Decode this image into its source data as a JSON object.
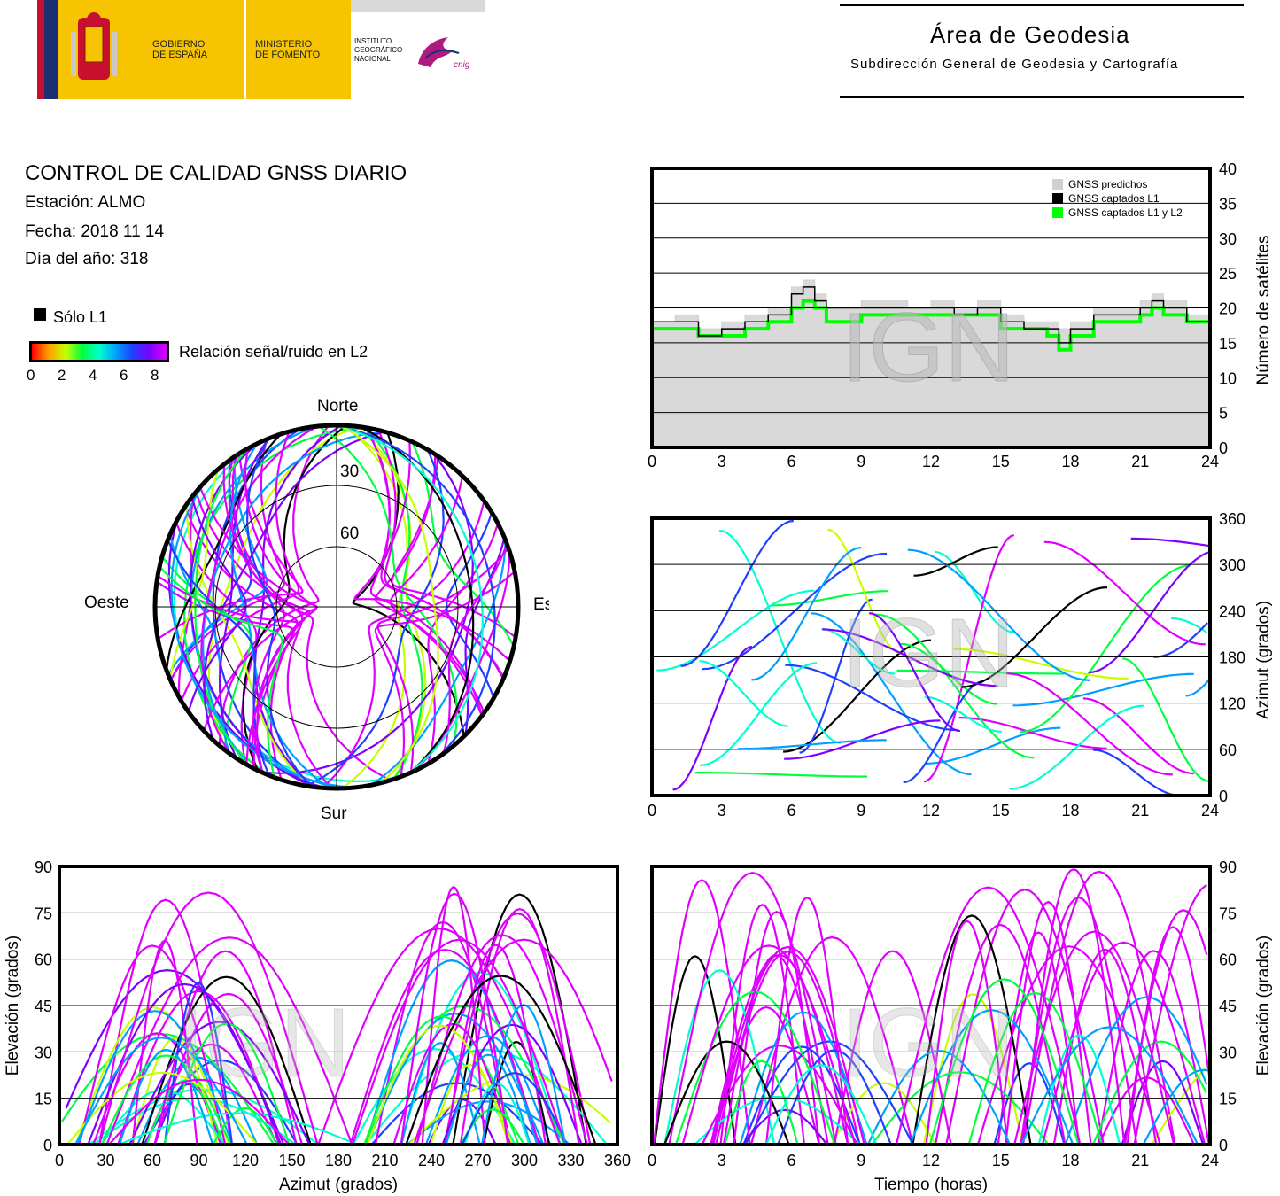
{
  "header": {
    "gov1": "GOBIERNO",
    "gov2": "DE ESPAÑA",
    "min1": "MINISTERIO",
    "min2": "DE FOMENTO",
    "ign1": "INSTITUTO",
    "ign2": "GEOGRÁFICO",
    "ign3": "NACIONAL",
    "cnig": "cnig",
    "area_title": "Área de Geodesia",
    "area_subtitle": "Subdirección General de Geodesia y Cartografía"
  },
  "info": {
    "title": "CONTROL DE CALIDAD GNSS DIARIO",
    "station": "Estación: ALMO",
    "date": "Fecha: 2018 11 14",
    "doy": "Día del año: 318"
  },
  "legend": {
    "l1_only": "Sólo L1",
    "snr_label": "Relación señal/ruido en L2",
    "snr_ticks": [
      "0",
      "2",
      "4",
      "6",
      "8"
    ],
    "snr_colors": [
      "#ff0000",
      "#ffa000",
      "#c8ff00",
      "#00ff40",
      "#00ffd0",
      "#00a0ff",
      "#2040ff",
      "#8000ff",
      "#e000ff"
    ]
  },
  "watermark": "IGN",
  "charts": {
    "skyplot": {
      "north": "Norte",
      "south": "Sur",
      "east": "Este",
      "west": "Oeste",
      "ring30": "30",
      "ring60": "60"
    },
    "numsat": {
      "ylabel": "Número de satélites",
      "yticks": [
        "0",
        "5",
        "10",
        "15",
        "20",
        "25",
        "30",
        "35",
        "40"
      ],
      "xticks": [
        "0",
        "3",
        "6",
        "9",
        "12",
        "15",
        "18",
        "21",
        "24"
      ],
      "legend_pred": "GNSS predichos",
      "legend_l1": "GNSS captados L1",
      "legend_l12": "GNSS captados L1 y L2"
    },
    "azimut": {
      "ylabel": "Azimut (grados)",
      "yticks": [
        "0",
        "60",
        "120",
        "180",
        "240",
        "300",
        "360"
      ],
      "xticks": [
        "0",
        "3",
        "6",
        "9",
        "12",
        "15",
        "18",
        "21",
        "24"
      ]
    },
    "elev_az": {
      "ylabel": "Elevación (grados)",
      "xlabel": "Azimut (grados)",
      "yticks": [
        "0",
        "15",
        "30",
        "45",
        "60",
        "75",
        "90"
      ],
      "xticks": [
        "0",
        "30",
        "60",
        "90",
        "120",
        "150",
        "180",
        "210",
        "240",
        "270",
        "300",
        "330",
        "360"
      ]
    },
    "elev_t": {
      "ylabel": "Elevación (grados)",
      "xlabel": "Tiempo (horas)",
      "yticks": [
        "0",
        "15",
        "30",
        "45",
        "60",
        "75",
        "90"
      ],
      "xticks": [
        "0",
        "3",
        "6",
        "9",
        "12",
        "15",
        "18",
        "21",
        "24"
      ]
    }
  },
  "chart_data": [
    {
      "type": "line",
      "title": "",
      "xlabel": "",
      "ylabel": "Número de satélites",
      "xlim": [
        0,
        24
      ],
      "ylim": [
        0,
        40
      ],
      "grid": true,
      "legend_placement": "top-right",
      "x": [
        0,
        1,
        2,
        3,
        4,
        5,
        6,
        6.5,
        7,
        7.5,
        8,
        9,
        10,
        11,
        12,
        13,
        14,
        15,
        16,
        17,
        17.5,
        18,
        19,
        20,
        21,
        21.5,
        22,
        23,
        24
      ],
      "series": [
        {
          "name": "GNSS predichos",
          "values": [
            18,
            19,
            17,
            18,
            19,
            20,
            23,
            24,
            22,
            20,
            20,
            21,
            21,
            20,
            21,
            20,
            21,
            19,
            18,
            18,
            17,
            18,
            20,
            20,
            21,
            22,
            21,
            19,
            19
          ]
        },
        {
          "name": "GNSS captados L1",
          "values": [
            18,
            18,
            16,
            17,
            18,
            19,
            22,
            23,
            21,
            20,
            20,
            20,
            20,
            20,
            20,
            19,
            20,
            18,
            17,
            17,
            15,
            17,
            19,
            19,
            20,
            21,
            20,
            18,
            18
          ]
        },
        {
          "name": "GNSS captados L1 y L2",
          "values": [
            17,
            17,
            16,
            16,
            17,
            18,
            20,
            21,
            20,
            18,
            18,
            19,
            19,
            19,
            19,
            19,
            19,
            17,
            17,
            16,
            14,
            16,
            18,
            18,
            19,
            20,
            19,
            18,
            18
          ]
        }
      ]
    },
    {
      "type": "scatter",
      "title": "",
      "xlabel": "",
      "ylabel": "Azimut (grados)",
      "xlim": [
        0,
        24
      ],
      "ylim": [
        0,
        360
      ],
      "grid": true
    },
    {
      "type": "scatter",
      "title": "",
      "xlabel": "Azimut (grados)",
      "ylabel": "Elevación (grados)",
      "xlim": [
        0,
        360
      ],
      "ylim": [
        0,
        90
      ],
      "grid": true
    },
    {
      "type": "line",
      "title": "",
      "xlabel": "Tiempo (horas)",
      "ylabel": "Elevación (grados)",
      "xlim": [
        0,
        24
      ],
      "ylim": [
        0,
        90
      ],
      "grid": true
    }
  ]
}
